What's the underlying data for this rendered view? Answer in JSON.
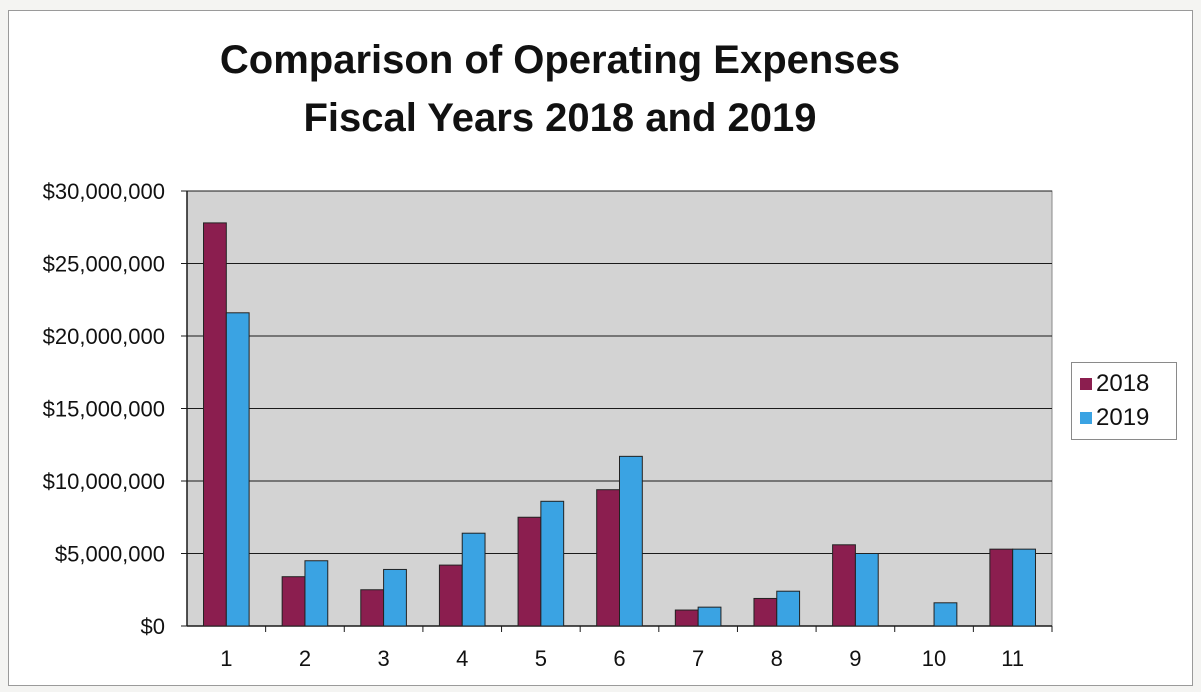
{
  "title": [
    "Comparison of Operating Expenses",
    "Fiscal Years 2018 and 2019"
  ],
  "chart_data": {
    "type": "bar",
    "title": "Comparison of Operating Expenses Fiscal Years 2018 and 2019",
    "xlabel": "",
    "ylabel": "",
    "categories": [
      "1",
      "2",
      "3",
      "4",
      "5",
      "6",
      "7",
      "8",
      "9",
      "10",
      "11"
    ],
    "ylim": [
      0,
      30000000
    ],
    "yticks": [
      0,
      5000000,
      10000000,
      15000000,
      20000000,
      25000000,
      30000000
    ],
    "ytick_labels": [
      "$0",
      "$5,000,000",
      "$10,000,000",
      "$15,000,000",
      "$20,000,000",
      "$25,000,000",
      "$30,000,000"
    ],
    "grid": true,
    "legend_position": "right",
    "series": [
      {
        "name": "2018",
        "color": "#8b1e4f",
        "values": [
          27800000,
          3400000,
          2500000,
          4200000,
          7500000,
          9400000,
          1100000,
          1900000,
          5600000,
          0,
          5300000
        ]
      },
      {
        "name": "2019",
        "color": "#3aa3e3",
        "values": [
          21600000,
          4500000,
          3900000,
          6400000,
          8600000,
          11700000,
          1300000,
          2400000,
          5000000,
          1600000,
          5300000
        ]
      }
    ]
  }
}
